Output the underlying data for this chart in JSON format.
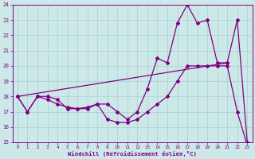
{
  "background_color": "#cde8e8",
  "line_color": "#800080",
  "grid_color": "#a8d0d0",
  "xlabel": "Windchill (Refroidissement éolien,°C)",
  "ylim": [
    15,
    24
  ],
  "xlim": [
    -0.5,
    23.5
  ],
  "yticks": [
    15,
    16,
    17,
    18,
    19,
    20,
    21,
    22,
    23,
    24
  ],
  "xticks": [
    0,
    1,
    2,
    3,
    4,
    5,
    6,
    7,
    8,
    9,
    10,
    11,
    12,
    13,
    14,
    15,
    16,
    17,
    18,
    19,
    20,
    21,
    22,
    23
  ],
  "series1_x": [
    0,
    1,
    2,
    3,
    4,
    5,
    6,
    7,
    8,
    9,
    10,
    11,
    12,
    13,
    14,
    15,
    16,
    17,
    18,
    19,
    20,
    21,
    22,
    23
  ],
  "series1_y": [
    18,
    17,
    18,
    17.8,
    17.5,
    17.3,
    17.2,
    17.3,
    17.5,
    16.5,
    16.3,
    16.3,
    16.5,
    17.0,
    17.5,
    18.0,
    19.0,
    20.0,
    20.0,
    20.0,
    20.0,
    20.0,
    17.0,
    14.8
  ],
  "series2_x": [
    0,
    1,
    2,
    3,
    4,
    5,
    6,
    7,
    8,
    9,
    10,
    11,
    12,
    13,
    14,
    15,
    16,
    17,
    18,
    19,
    20,
    21,
    22,
    23
  ],
  "series2_y": [
    18,
    17,
    18,
    18,
    17.8,
    17.2,
    17.2,
    17.2,
    17.5,
    17.5,
    17.0,
    16.5,
    17.0,
    18.5,
    20.5,
    20.2,
    22.8,
    24.0,
    22.8,
    23.0,
    20.2,
    20.2,
    23.0,
    15.0
  ],
  "series3_x": [
    0,
    21
  ],
  "series3_y": [
    18,
    20.2
  ]
}
